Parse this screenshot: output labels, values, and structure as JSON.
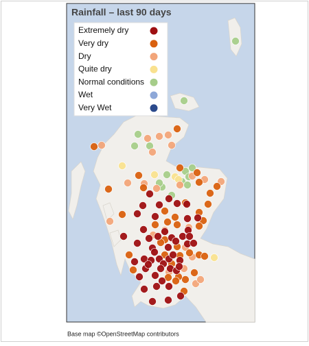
{
  "title": "Rainfall – last 90 days",
  "legend": [
    {
      "label": "Extremely dry",
      "color": "#9e0f12"
    },
    {
      "label": "Very dry",
      "color": "#d9600f"
    },
    {
      "label": "Dry",
      "color": "#f2a57a"
    },
    {
      "label": "Quite dry",
      "color": "#f9e18f"
    },
    {
      "label": "Normal conditions",
      "color": "#a6cd8a"
    },
    {
      "label": "Wet",
      "color": "#8ea8d8"
    },
    {
      "label": "Very Wet",
      "color": "#2b4a8c"
    }
  ],
  "attribution": "Base map ©OpenStreetMap contributors"
}
